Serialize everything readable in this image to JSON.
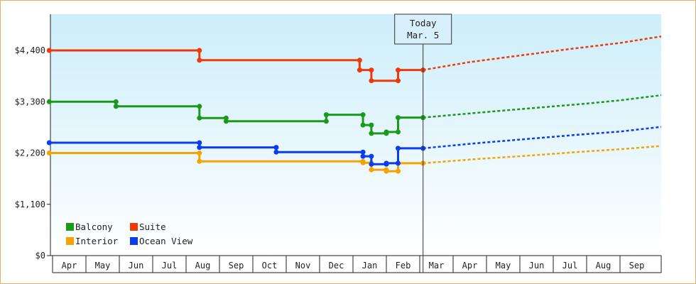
{
  "chart_data": {
    "type": "line",
    "title": "",
    "xlabel": "",
    "ylabel": "",
    "ylim": [
      0,
      4400
    ],
    "y_ticks": [
      "$0",
      "$1,100",
      "$2,200",
      "$3,300",
      "$4,400"
    ],
    "x_ticks": [
      "Apr",
      "May",
      "Jun",
      "Jul",
      "Aug",
      "Sep",
      "Oct",
      "Nov",
      "Dec",
      "Jan",
      "Feb",
      "Mar",
      "Apr",
      "May",
      "Jun",
      "Jul",
      "Aug",
      "Sep"
    ],
    "today_marker": {
      "line1": "Today",
      "line2": "Mar. 5",
      "month_index": 11.1
    },
    "legend_position": "bottom-left",
    "background_gradient": [
      "#cdeefa",
      "#ffffff"
    ],
    "series": [
      {
        "name": "Balcony",
        "color": "#1a9a1a",
        "points": [
          [
            -0.1,
            3300
          ],
          [
            1.9,
            3300
          ],
          [
            1.9,
            3200
          ],
          [
            4.4,
            3200
          ],
          [
            4.4,
            2950
          ],
          [
            5.2,
            2950
          ],
          [
            5.2,
            2880
          ],
          [
            8.2,
            2880
          ],
          [
            8.2,
            3020
          ],
          [
            9.3,
            3020
          ],
          [
            9.3,
            2800
          ],
          [
            9.55,
            2800
          ],
          [
            9.55,
            2620
          ],
          [
            10.0,
            2620
          ],
          [
            10.0,
            2650
          ],
          [
            10.35,
            2650
          ],
          [
            10.35,
            2960
          ],
          [
            11.1,
            2960
          ]
        ],
        "projection": [
          [
            11.1,
            2960
          ],
          [
            13.0,
            3080
          ],
          [
            14.5,
            3170
          ],
          [
            16.0,
            3260
          ],
          [
            17.0,
            3330
          ],
          [
            18.3,
            3440
          ]
        ]
      },
      {
        "name": "Suite",
        "color": "#ee3a0a",
        "points": [
          [
            -0.1,
            4400
          ],
          [
            4.4,
            4400
          ],
          [
            4.4,
            4190
          ],
          [
            9.2,
            4190
          ],
          [
            9.2,
            3980
          ],
          [
            9.55,
            3980
          ],
          [
            9.55,
            3750
          ],
          [
            10.35,
            3750
          ],
          [
            10.35,
            3980
          ],
          [
            11.1,
            3980
          ]
        ],
        "projection": [
          [
            11.1,
            3980
          ],
          [
            12.5,
            4150
          ],
          [
            14.0,
            4290
          ],
          [
            15.5,
            4430
          ],
          [
            17.0,
            4560
          ],
          [
            18.3,
            4700
          ]
        ]
      },
      {
        "name": "Interior",
        "color": "#f5a300",
        "points": [
          [
            -0.1,
            2200
          ],
          [
            4.4,
            2200
          ],
          [
            4.4,
            2020
          ],
          [
            9.3,
            2020
          ],
          [
            9.3,
            1990
          ],
          [
            9.55,
            1990
          ],
          [
            9.55,
            1840
          ],
          [
            10.0,
            1840
          ],
          [
            10.0,
            1810
          ],
          [
            10.35,
            1810
          ],
          [
            10.35,
            1980
          ],
          [
            11.1,
            1980
          ]
        ],
        "projection": [
          [
            11.1,
            1980
          ],
          [
            12.7,
            2070
          ],
          [
            14.2,
            2140
          ],
          [
            15.7,
            2220
          ],
          [
            17.0,
            2280
          ],
          [
            18.3,
            2350
          ]
        ]
      },
      {
        "name": "Ocean View",
        "color": "#0a3cf0",
        "points": [
          [
            -0.1,
            2420
          ],
          [
            4.4,
            2420
          ],
          [
            4.4,
            2320
          ],
          [
            6.7,
            2320
          ],
          [
            6.7,
            2220
          ],
          [
            9.3,
            2220
          ],
          [
            9.3,
            2130
          ],
          [
            9.55,
            2130
          ],
          [
            9.55,
            1960
          ],
          [
            10.0,
            1960
          ],
          [
            10.0,
            1980
          ],
          [
            10.35,
            1980
          ],
          [
            10.35,
            2300
          ],
          [
            11.1,
            2300
          ]
        ],
        "projection": [
          [
            11.1,
            2300
          ],
          [
            12.7,
            2410
          ],
          [
            14.2,
            2500
          ],
          [
            15.7,
            2590
          ],
          [
            17.0,
            2660
          ],
          [
            18.3,
            2760
          ]
        ]
      }
    ]
  }
}
